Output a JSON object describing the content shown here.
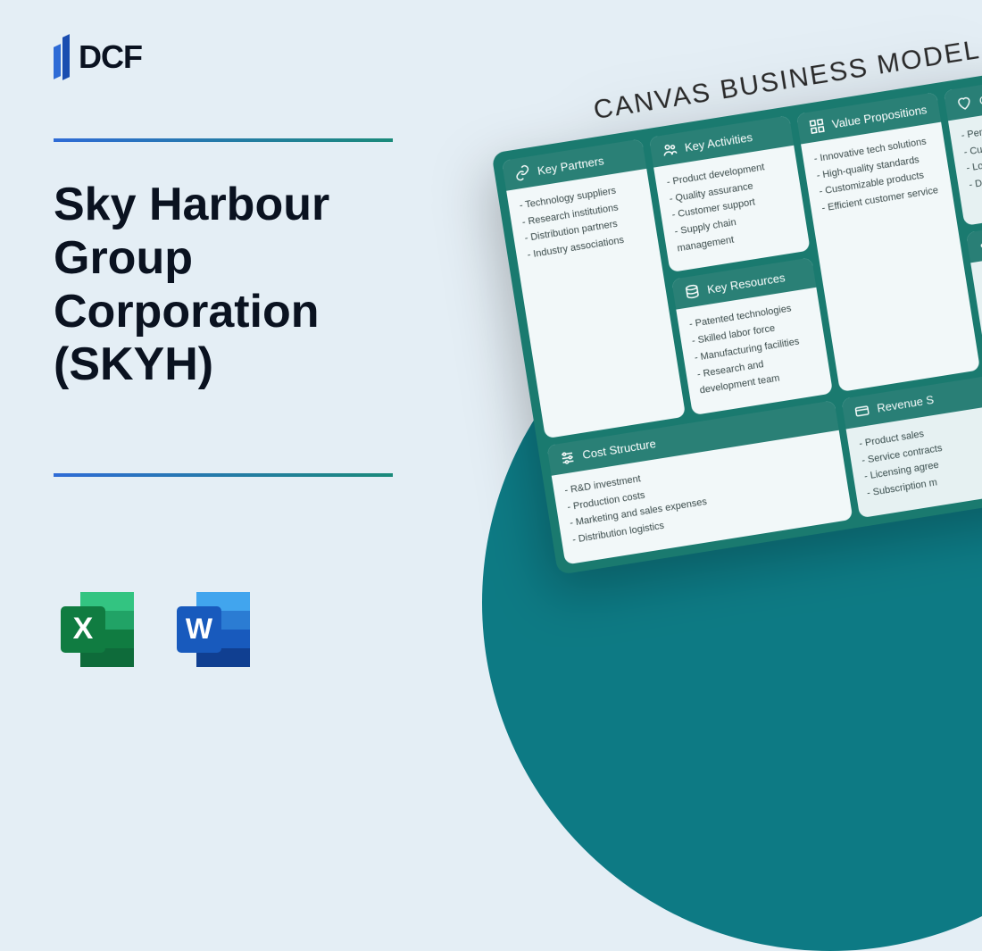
{
  "brand": {
    "name": "DCF"
  },
  "title": "Sky Harbour Group Corporation (SKYH)",
  "apps": {
    "excel": {
      "letter": "X",
      "color_dark": "#107c41",
      "color_mid": "#21a366",
      "color_light": "#33c481"
    },
    "word": {
      "letter": "W",
      "color_dark": "#185abd",
      "color_mid": "#2b7cd3",
      "color_light": "#41a5ee"
    }
  },
  "canvas": {
    "title": "CANVAS BUSINESS MODEL",
    "accent": "#2a8076",
    "blocks": {
      "key_partners": {
        "label": "Key Partners",
        "items": [
          "Technology suppliers",
          "Research institutions",
          "Distribution partners",
          "Industry associations"
        ]
      },
      "key_activities": {
        "label": "Key Activities",
        "items": [
          "Product development",
          "Quality assurance",
          "Customer support",
          "Supply chain management"
        ]
      },
      "key_resources": {
        "label": "Key Resources",
        "items": [
          "Patented technologies",
          "Skilled labor force",
          "Manufacturing facilities",
          "Research and development team"
        ]
      },
      "value_propositions": {
        "label": "Value Propositions",
        "items": [
          "Innovative tech solutions",
          "High-quality standards",
          "Customizable products",
          "Efficient customer service"
        ]
      },
      "customer_relationships": {
        "label": "C",
        "items": [
          "Personaliz",
          "Customer",
          "Loyalty p",
          "Dedica"
        ]
      },
      "channels": {
        "label": "",
        "items": [
          "Di",
          "O",
          "D"
        ]
      },
      "cost_structure": {
        "label": "Cost Structure",
        "items": [
          "R&D investment",
          "Production costs",
          "Marketing and sales expenses",
          "Distribution logistics"
        ]
      },
      "revenue_streams": {
        "label": "Revenue S",
        "items": [
          "Product sales",
          "Service contracts",
          "Licensing agree",
          "Subscription m"
        ]
      }
    }
  }
}
